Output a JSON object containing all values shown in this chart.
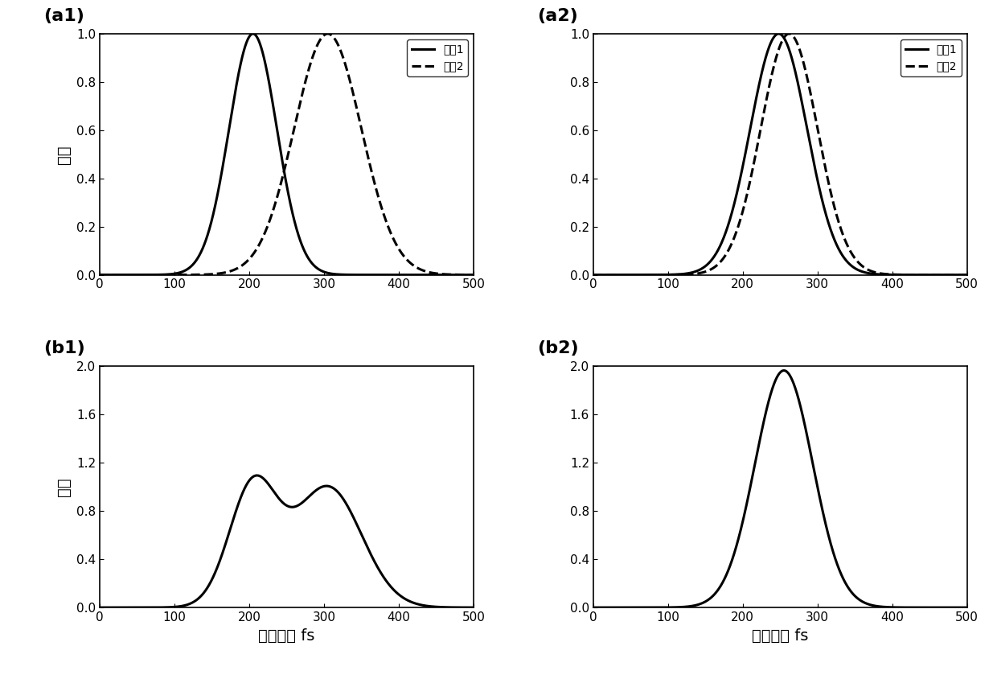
{
  "xlim": [
    0,
    500
  ],
  "xticks": [
    0,
    100,
    200,
    300,
    400,
    500
  ],
  "a1_ylim": [
    0,
    1.0
  ],
  "a1_yticks": [
    0.0,
    0.2,
    0.4,
    0.6,
    0.8,
    1.0
  ],
  "a2_ylim": [
    0,
    1.0
  ],
  "a2_yticks": [
    0.0,
    0.2,
    0.4,
    0.6,
    0.8,
    1.0
  ],
  "b1_ylim": [
    0,
    2.0
  ],
  "b1_yticks": [
    0.0,
    0.4,
    0.8,
    1.2,
    1.6,
    2.0
  ],
  "b2_ylim": [
    0,
    2.0
  ],
  "b2_yticks": [
    0.0,
    0.4,
    0.8,
    1.2,
    1.6,
    2.0
  ],
  "a1_mu1": 205,
  "a1_sigma1": 32,
  "a1_mu2": 305,
  "a1_sigma2": 45,
  "a2_mu1": 248,
  "a2_sigma1": 38,
  "a2_mu2": 262,
  "a2_sigma2": 38,
  "xlabel": "延迟时间 fs",
  "ylabel": "强度",
  "legend1_label1": "脉冲1",
  "legend1_label2": "脉冲2",
  "panel_labels": [
    "(a1)",
    "(a2)",
    "(b1)",
    "(b2)"
  ],
  "line_color": "#000000",
  "linewidth": 2.2,
  "fontsize_label": 14,
  "fontsize_tick": 11,
  "fontsize_panel": 16,
  "fontsize_legend": 10,
  "background_color": "#ffffff"
}
